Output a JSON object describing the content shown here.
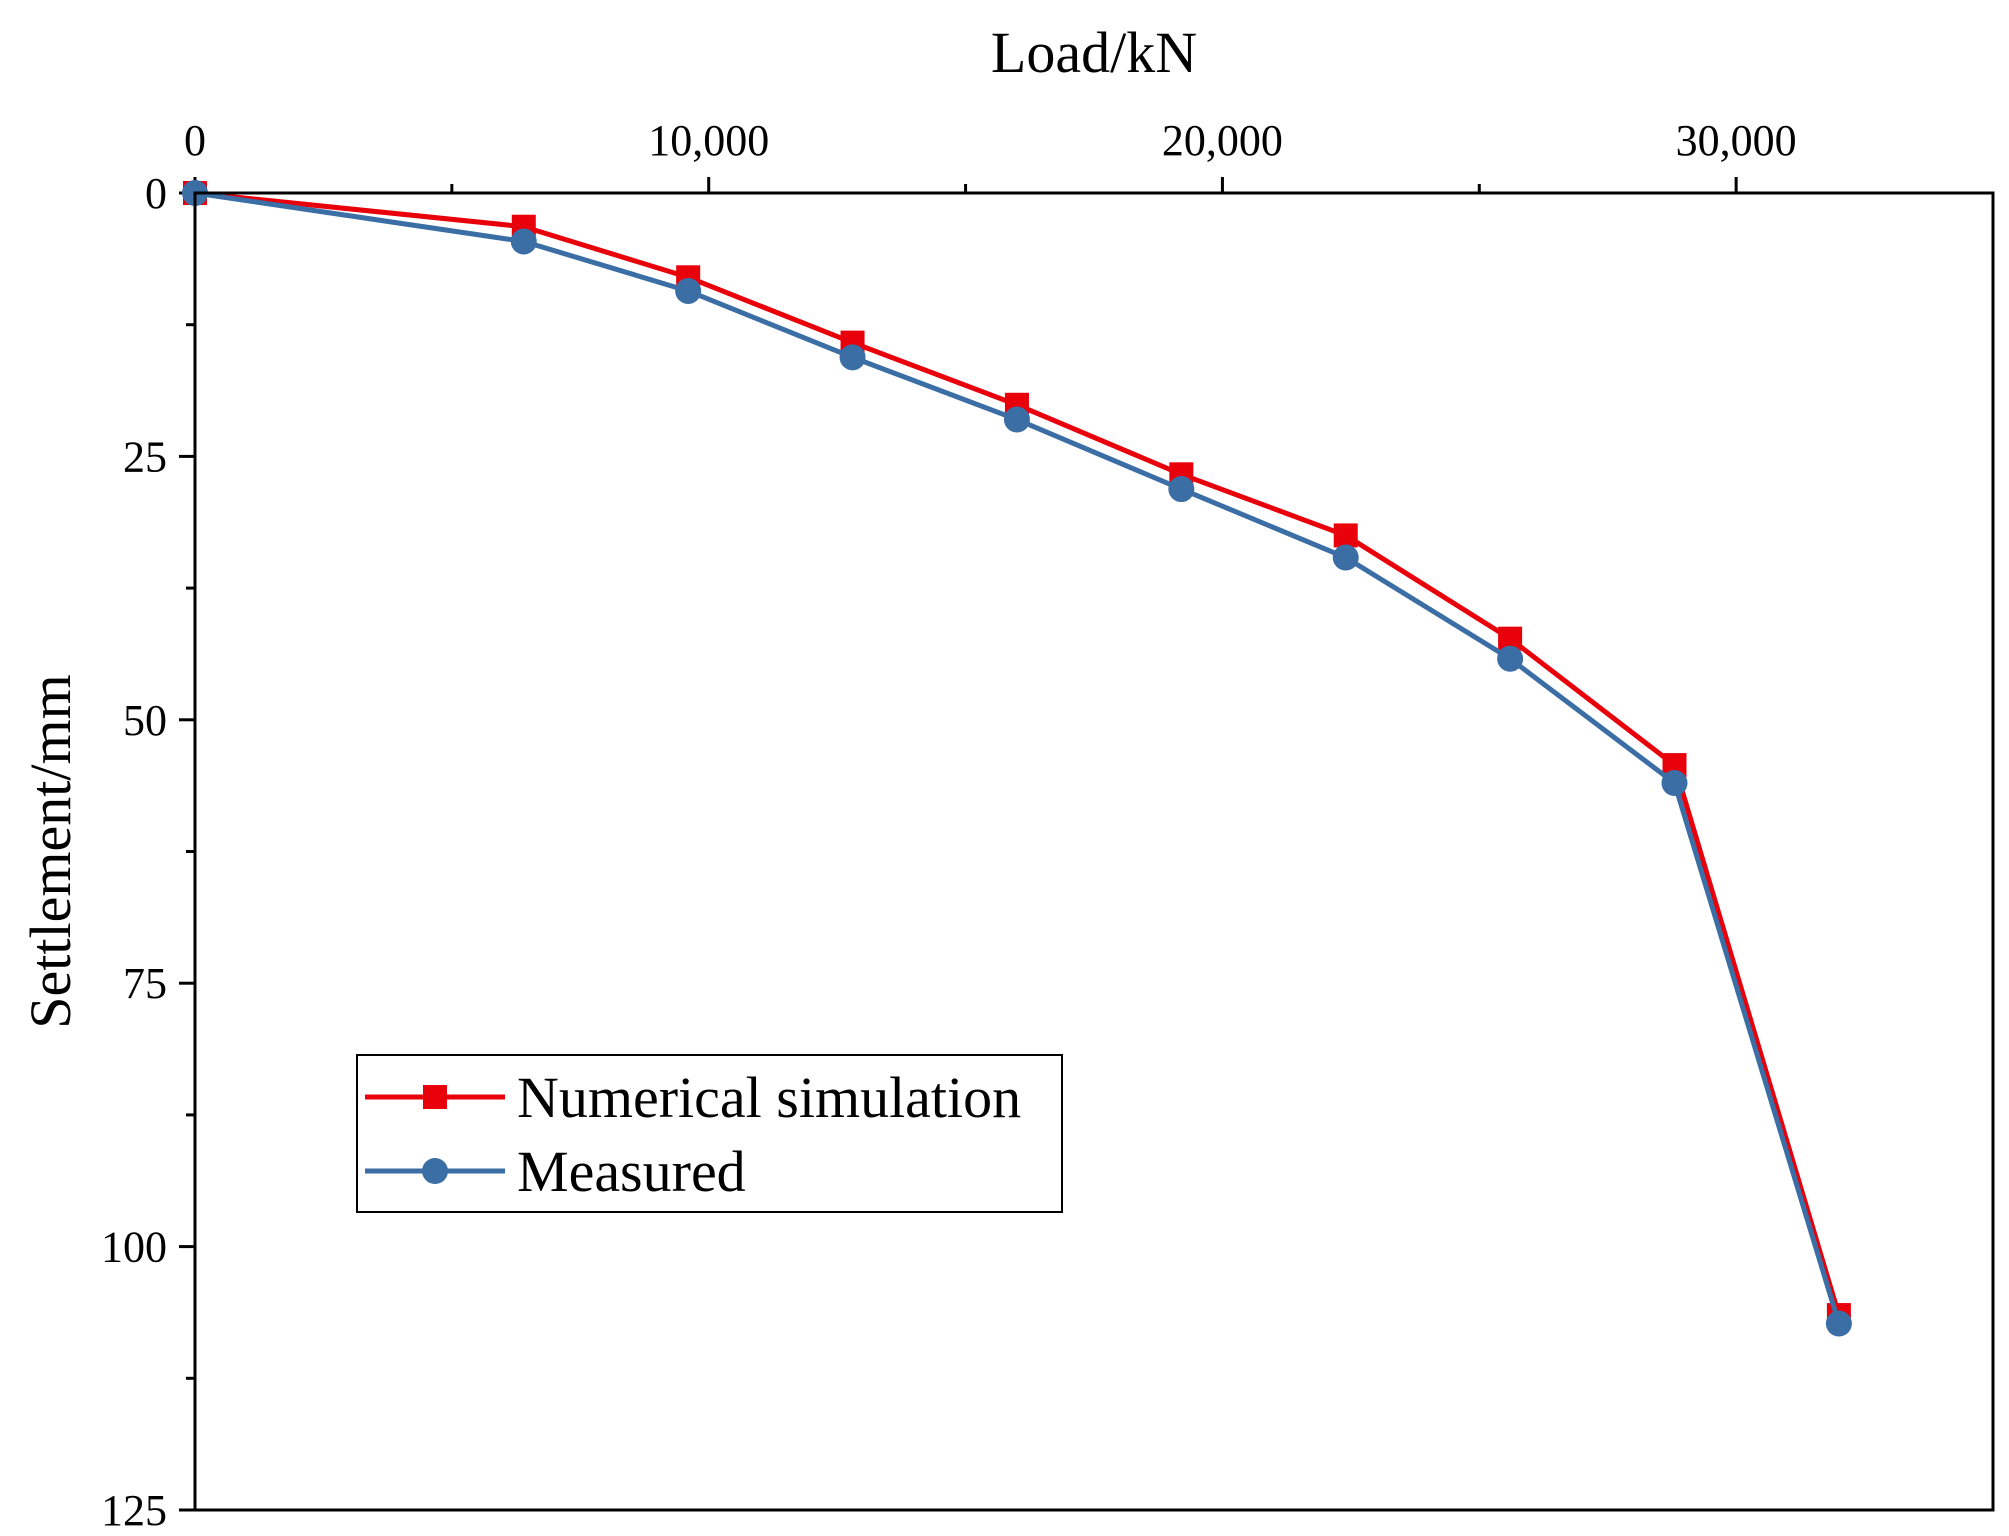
{
  "chart_data": {
    "type": "line",
    "title": "",
    "xlabel": "Load/kN",
    "ylabel": "Settlement/mm",
    "x_axis_position": "top",
    "y_axis_inverted": true,
    "xlim": [
      0,
      35000
    ],
    "ylim": [
      0,
      125
    ],
    "x_ticks": [
      0,
      10000,
      20000,
      30000
    ],
    "x_tick_labels": [
      "0",
      "10,000",
      "20,000",
      "30,000"
    ],
    "y_ticks": [
      0,
      25,
      50,
      75,
      100,
      125
    ],
    "y_tick_labels": [
      "0",
      "25",
      "50",
      "75",
      "100",
      "125"
    ],
    "grid": false,
    "legend_position": "lower-left",
    "series": [
      {
        "name": "Numerical simulation",
        "color": "#e8000b",
        "marker": "square",
        "x": [
          0,
          6400,
          9600,
          12800,
          16000,
          19200,
          22400,
          25600,
          28800,
          32000
        ],
        "y": [
          0,
          3.2,
          8.0,
          14.2,
          20.1,
          26.7,
          32.5,
          42.3,
          54.3,
          106.5
        ]
      },
      {
        "name": "Measured",
        "color": "#3a6ea5",
        "marker": "circle",
        "x": [
          0,
          6400,
          9600,
          12800,
          16000,
          19200,
          22400,
          25600,
          28800,
          32000
        ],
        "y": [
          0,
          4.6,
          9.3,
          15.6,
          21.5,
          28.1,
          34.6,
          44.2,
          56.0,
          107.3
        ]
      }
    ]
  }
}
